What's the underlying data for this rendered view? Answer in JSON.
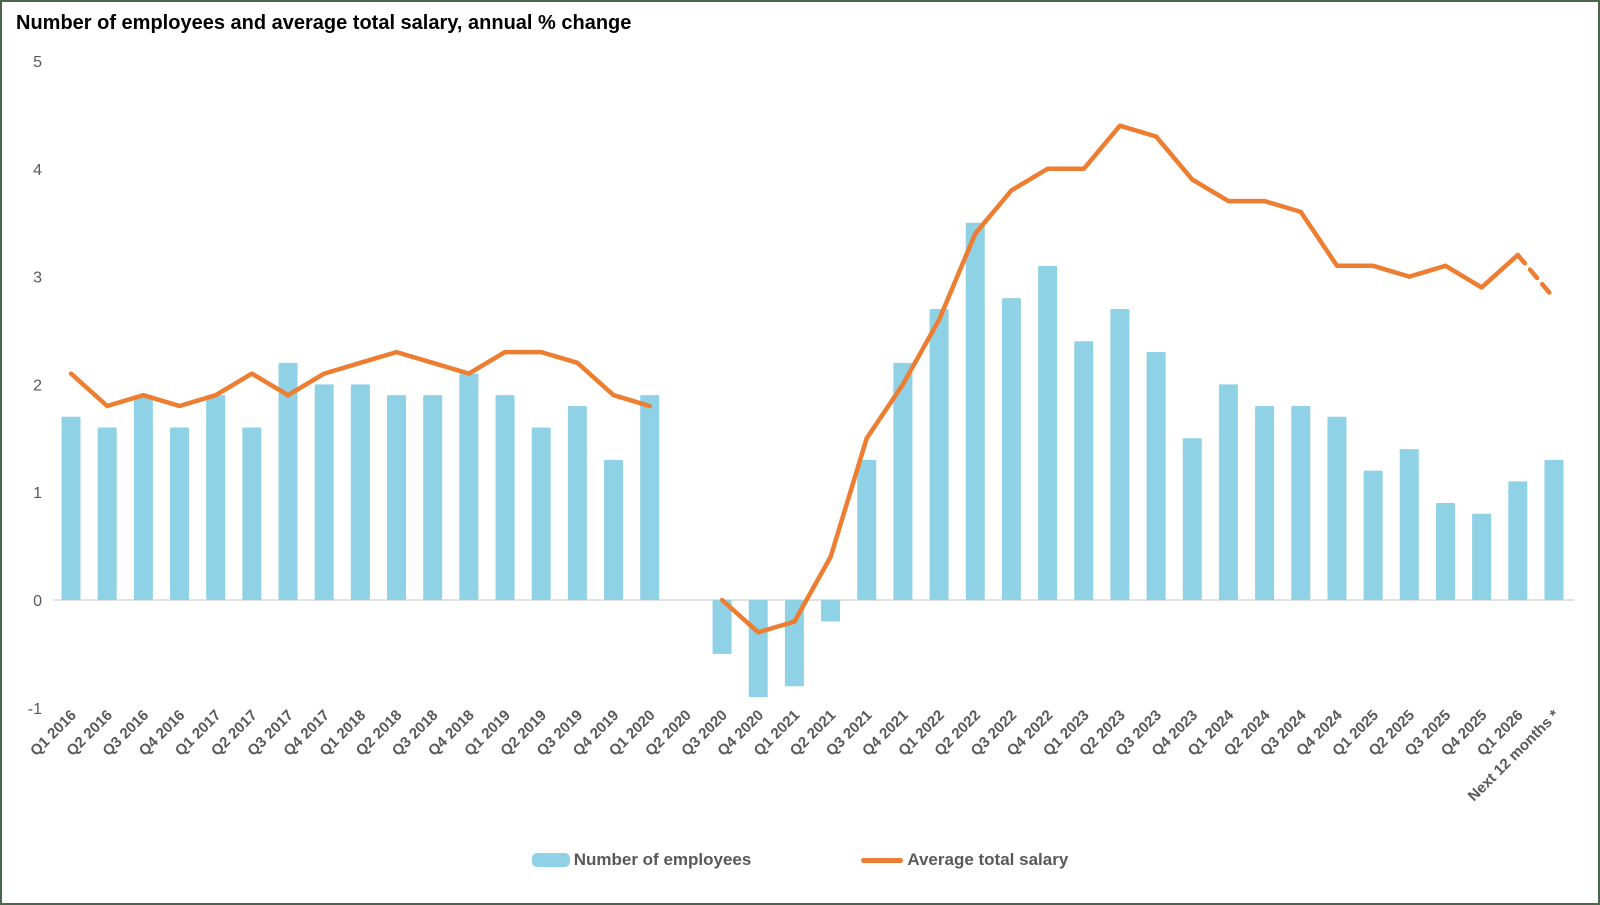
{
  "title": "Number of employees and average total salary, annual % change",
  "legend": {
    "bars_label": "Number of employees",
    "line_label": "Average total salary"
  },
  "colors": {
    "bar": "#8FD1E5",
    "line": "#ED7D31",
    "axis_text": "#595959",
    "zero_line": "#D9D9D9",
    "frame": "#4A664F"
  },
  "chart_data": {
    "type": "bar",
    "title": "Number of employees and average total salary, annual % change",
    "xlabel": "",
    "ylabel": "",
    "ylim": [
      -1,
      5
    ],
    "yticks": [
      5,
      4,
      3,
      2,
      1,
      0,
      -1
    ],
    "gridlines": "zero-line-only",
    "legend_position": "bottom-center",
    "categories": [
      "Q1 2016",
      "Q2 2016",
      "Q3 2016",
      "Q4 2016",
      "Q1 2017",
      "Q2 2017",
      "Q3 2017",
      "Q4 2017",
      "Q1 2018",
      "Q2 2018",
      "Q3 2018",
      "Q4 2018",
      "Q1 2019",
      "Q2 2019",
      "Q3 2019",
      "Q4 2019",
      "Q1 2020",
      "Q2 2020",
      "Q3 2020",
      "Q4 2020",
      "Q1 2021",
      "Q2 2021",
      "Q3 2021",
      "Q4 2021",
      "Q1 2022",
      "Q2 2022",
      "Q3 2022",
      "Q4 2022",
      "Q1 2023",
      "Q2 2023",
      "Q3 2023",
      "Q4 2023",
      "Q1 2024",
      "Q2 2024",
      "Q3 2024",
      "Q4 2024",
      "Q1 2025",
      "Q2 2025",
      "Q3 2025",
      "Q4 2025",
      "Q1 2026",
      "Next 12 months *"
    ],
    "series": [
      {
        "name": "Number of employees",
        "type": "bar",
        "values": [
          1.7,
          1.6,
          1.9,
          1.6,
          1.9,
          1.6,
          2.2,
          2.0,
          2.0,
          1.9,
          1.9,
          2.1,
          1.9,
          1.6,
          1.8,
          1.3,
          1.9,
          null,
          -0.5,
          -0.9,
          -0.8,
          -0.2,
          1.3,
          2.2,
          2.7,
          3.5,
          2.8,
          3.1,
          2.4,
          2.7,
          2.3,
          1.5,
          2.0,
          1.8,
          1.8,
          1.7,
          1.2,
          1.4,
          0.9,
          0.8,
          1.1,
          1.3
        ]
      },
      {
        "name": "Average total salary",
        "type": "line",
        "values": [
          2.1,
          1.8,
          1.9,
          1.8,
          1.9,
          2.1,
          1.9,
          2.1,
          2.2,
          2.3,
          2.2,
          2.1,
          2.3,
          2.3,
          2.2,
          1.9,
          1.8,
          null,
          0.0,
          -0.3,
          -0.2,
          0.4,
          1.5,
          2.0,
          2.6,
          3.4,
          3.8,
          4.0,
          4.0,
          4.4,
          4.3,
          3.9,
          3.7,
          3.7,
          3.6,
          3.1,
          3.1,
          3.0,
          3.1,
          2.9,
          3.2,
          2.8
        ],
        "segments": [
          {
            "from": 0,
            "to": 16,
            "dashed": false
          },
          {
            "from": 18,
            "to": 40,
            "dashed": false
          },
          {
            "from": 40,
            "to": 41,
            "dashed": true
          }
        ]
      }
    ]
  }
}
